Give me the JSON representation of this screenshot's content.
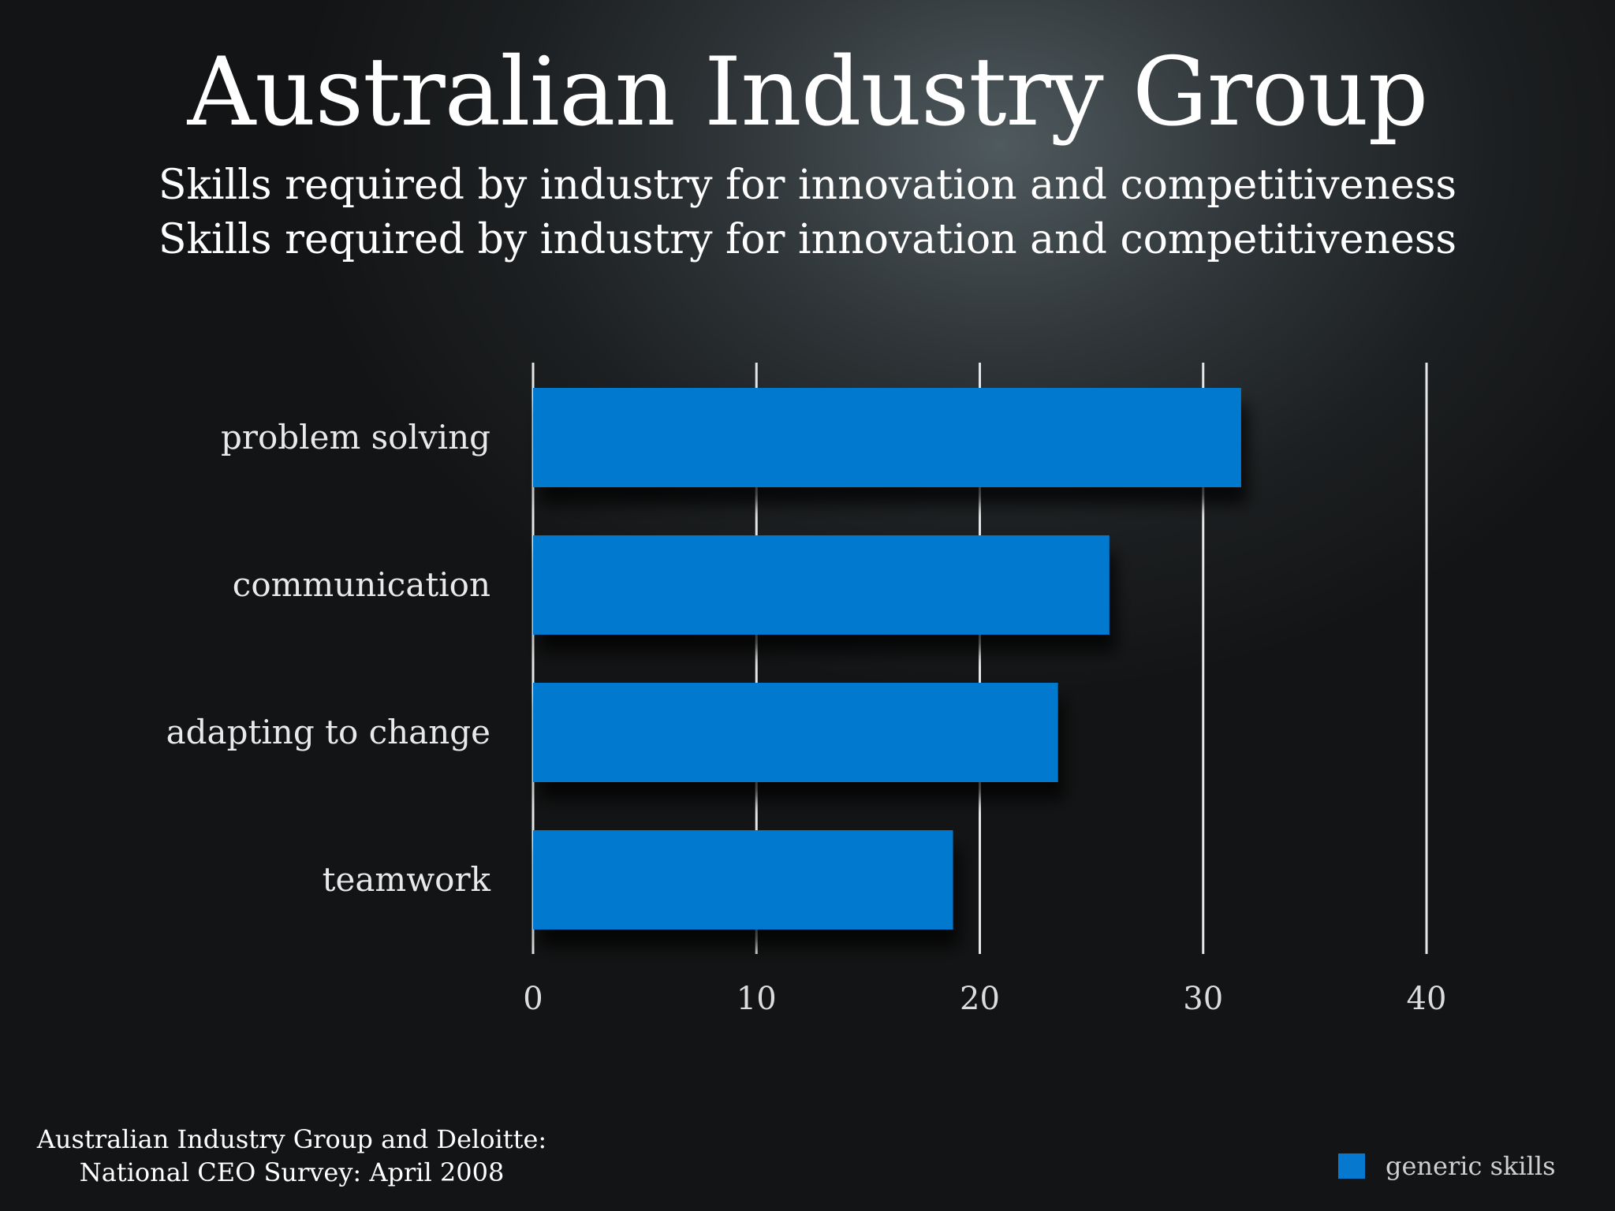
{
  "slide": {
    "title": "Australian Industry Group",
    "subtitle_lines": [
      "Skills required by industry for innovation and competitiveness",
      "Skills required by industry for innovation and competitiveness"
    ],
    "source_lines": [
      "Australian Industry Group and Deloitte:",
      "National CEO Survey: April 2008"
    ]
  },
  "colors": {
    "bar": "#0679cf",
    "gridline": "#e6e6e6"
  },
  "chart_data": {
    "type": "bar",
    "orientation": "horizontal",
    "categories": [
      "problem solving",
      "communication",
      "adapting to change",
      "teamwork"
    ],
    "series": [
      {
        "name": "generic skills",
        "values": [
          31.7,
          25.8,
          23.5,
          18.8
        ]
      }
    ],
    "xlim": [
      0,
      40
    ],
    "xticks": [
      "0",
      "10",
      "20",
      "30",
      "40"
    ],
    "title": "",
    "xlabel": "",
    "ylabel": "",
    "grid": "vertical",
    "legend": "bottom-right"
  }
}
